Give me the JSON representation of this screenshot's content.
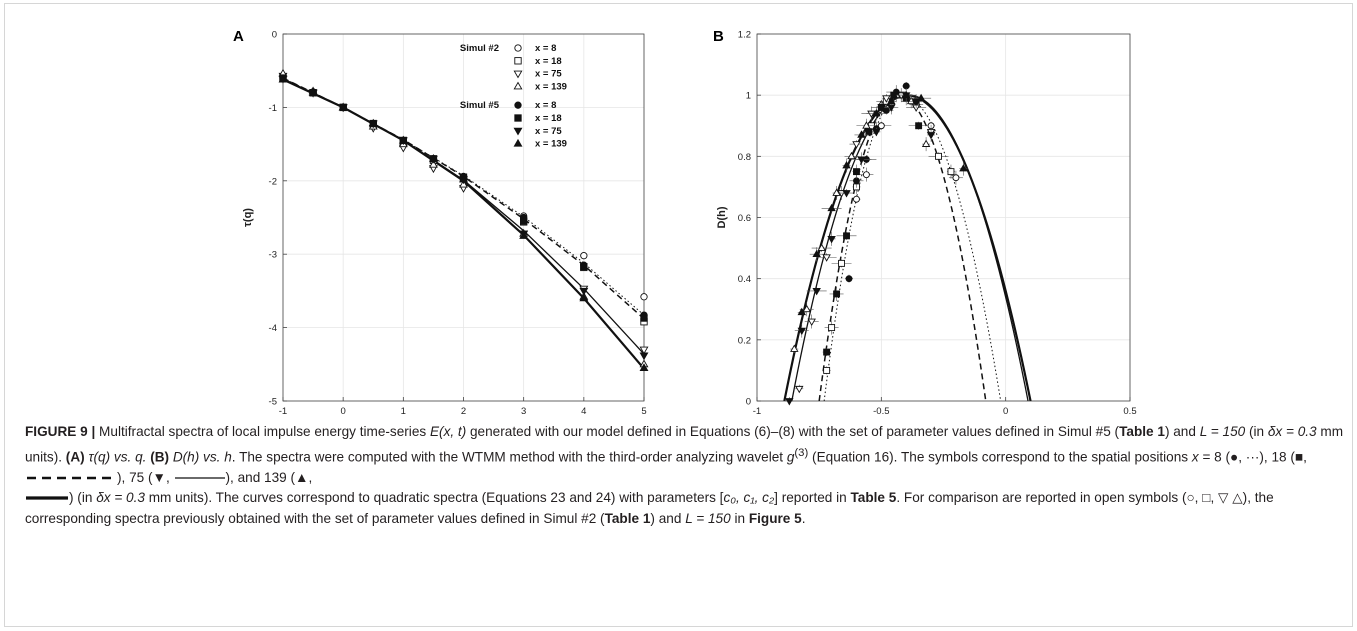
{
  "figure": {
    "panel_a_letter": "A",
    "panel_b_letter": "B"
  },
  "colors": {
    "marker": "#111111",
    "grid": "#e6e6e6",
    "axis": "#444444",
    "border": "#d6d6d6"
  },
  "chart_data": [
    {
      "type": "scatter",
      "panel": "A",
      "xlabel": "q",
      "ylabel": "τ(q)",
      "xlim": [
        -1,
        5
      ],
      "ylim": [
        -5,
        0
      ],
      "xticks": [
        -1,
        0,
        1,
        2,
        3,
        4,
        5
      ],
      "yticks": [
        0,
        -1,
        -2,
        -3,
        -4,
        -5
      ],
      "grid": true,
      "legend_position": "top-right",
      "legend_groups": [
        "Simul #2",
        "Simul #5"
      ],
      "series": [
        {
          "name": "x = 8",
          "group": "Simul #2",
          "marker": "circle-open",
          "x": [
            -1,
            -0.5,
            0,
            0.5,
            1,
            1.5,
            2,
            3,
            4,
            5
          ],
          "y": [
            -0.59,
            -0.79,
            -1.0,
            -1.22,
            -1.45,
            -1.7,
            -1.95,
            -2.48,
            -3.02,
            -3.58
          ]
        },
        {
          "name": "x = 18",
          "group": "Simul #2",
          "marker": "square-open",
          "x": [
            -1,
            -0.5,
            0,
            0.5,
            1,
            1.5,
            2,
            3,
            4,
            5
          ],
          "y": [
            -0.6,
            -0.8,
            -1.0,
            -1.23,
            -1.47,
            -1.72,
            -1.97,
            -2.56,
            -3.18,
            -3.92
          ]
        },
        {
          "name": "x = 75",
          "group": "Simul #2",
          "marker": "triangle-down-open",
          "x": [
            -1,
            -0.5,
            0,
            0.5,
            1,
            1.5,
            2,
            3,
            4,
            5
          ],
          "y": [
            -0.57,
            -0.8,
            -1.0,
            -1.28,
            -1.55,
            -1.83,
            -2.1,
            -2.72,
            -3.47,
            -4.3
          ]
        },
        {
          "name": "x = 139",
          "group": "Simul #2",
          "marker": "triangle-up-open",
          "x": [
            -1,
            -0.5,
            0,
            0.5,
            1,
            1.5,
            2,
            3,
            4,
            5
          ],
          "y": [
            -0.54,
            -0.78,
            -1.0,
            -1.26,
            -1.5,
            -1.78,
            -2.05,
            -2.72,
            -3.58,
            -4.5
          ]
        },
        {
          "name": "x = 8",
          "group": "Simul #5",
          "marker": "circle-filled",
          "x": [
            -1,
            -0.5,
            0,
            0.5,
            1,
            1.5,
            2,
            3,
            4,
            5
          ],
          "y": [
            -0.6,
            -0.79,
            -1.0,
            -1.22,
            -1.45,
            -1.7,
            -1.94,
            -2.5,
            -3.15,
            -3.83
          ]
        },
        {
          "name": "x = 18",
          "group": "Simul #5",
          "marker": "square-filled",
          "x": [
            -1,
            -0.5,
            0,
            0.5,
            1,
            1.5,
            2,
            3,
            4,
            5
          ],
          "y": [
            -0.6,
            -0.8,
            -1.0,
            -1.22,
            -1.45,
            -1.7,
            -1.95,
            -2.55,
            -3.17,
            -3.87
          ]
        },
        {
          "name": "x = 75",
          "group": "Simul #5",
          "marker": "triangle-down-filled",
          "x": [
            -1,
            -0.5,
            0,
            0.5,
            1,
            1.5,
            2,
            3,
            4,
            5
          ],
          "y": [
            -0.61,
            -0.8,
            -1.0,
            -1.22,
            -1.45,
            -1.7,
            -1.98,
            -2.72,
            -3.5,
            -4.38
          ]
        },
        {
          "name": "x = 139",
          "group": "Simul #5",
          "marker": "triangle-up-filled",
          "x": [
            -1,
            -0.5,
            0,
            0.5,
            1,
            1.5,
            2,
            3,
            4,
            5
          ],
          "y": [
            -0.62,
            -0.8,
            -1.0,
            -1.22,
            -1.45,
            -1.7,
            -1.98,
            -2.75,
            -3.6,
            -4.55
          ]
        }
      ],
      "lines": [
        {
          "style": "dotted",
          "x": [
            -1,
            0,
            1,
            2,
            3,
            4,
            5
          ],
          "y": [
            -0.6,
            -1.0,
            -1.44,
            -1.93,
            -2.49,
            -3.12,
            -3.83
          ]
        },
        {
          "style": "dashed",
          "x": [
            -1,
            0,
            1,
            2,
            3,
            4,
            5
          ],
          "y": [
            -0.6,
            -1.0,
            -1.44,
            -1.94,
            -2.52,
            -3.15,
            -3.88
          ]
        },
        {
          "style": "solid-thin",
          "x": [
            -1,
            0,
            1,
            2,
            3,
            4,
            5
          ],
          "y": [
            -0.61,
            -1.0,
            -1.45,
            -1.99,
            -2.68,
            -3.47,
            -4.36
          ]
        },
        {
          "style": "solid-thick",
          "x": [
            -1,
            0,
            1,
            2,
            3,
            4,
            5
          ],
          "y": [
            -0.62,
            -1.0,
            -1.45,
            -2.0,
            -2.74,
            -3.6,
            -4.56
          ]
        }
      ]
    },
    {
      "type": "scatter",
      "panel": "B",
      "xlabel": "h",
      "ylabel": "D(h)",
      "xlim": [
        -1,
        0.5
      ],
      "ylim": [
        0,
        1.2
      ],
      "xticks": [
        -1,
        -0.5,
        0,
        0.5
      ],
      "yticks": [
        0,
        0.2,
        0.4,
        0.6,
        0.8,
        1,
        1.2
      ],
      "grid": true,
      "series": [
        {
          "name": "x = 8",
          "group": "Simul #2",
          "marker": "circle-open",
          "x": [
            -0.6,
            -0.56,
            -0.5,
            -0.46,
            -0.42,
            -0.38,
            -0.3,
            -0.2
          ],
          "y": [
            0.66,
            0.74,
            0.9,
            0.97,
            1.0,
            0.98,
            0.9,
            0.73
          ]
        },
        {
          "name": "x = 18",
          "group": "Simul #2",
          "marker": "square-open",
          "x": [
            -0.72,
            -0.7,
            -0.66,
            -0.6,
            -0.54,
            -0.48,
            -0.42,
            -0.36,
            -0.27,
            -0.22
          ],
          "y": [
            0.1,
            0.24,
            0.45,
            0.7,
            0.9,
            0.98,
            1.0,
            0.97,
            0.8,
            0.75
          ]
        },
        {
          "name": "x = 75",
          "group": "Simul #2",
          "marker": "triangle-down-open",
          "x": [
            -0.83,
            -0.78,
            -0.72,
            -0.66,
            -0.6,
            -0.54,
            -0.48,
            -0.42,
            -0.36,
            -0.3
          ],
          "y": [
            0.04,
            0.26,
            0.47,
            0.68,
            0.84,
            0.94,
            0.99,
            1.0,
            0.96,
            0.88
          ]
        },
        {
          "name": "x = 139",
          "group": "Simul #2",
          "marker": "triangle-up-open",
          "x": [
            -0.85,
            -0.8,
            -0.74,
            -0.68,
            -0.62,
            -0.56,
            -0.5,
            -0.44,
            -0.38,
            -0.32
          ],
          "y": [
            0.17,
            0.3,
            0.5,
            0.68,
            0.8,
            0.9,
            0.97,
            1.0,
            0.98,
            0.84
          ]
        },
        {
          "name": "x = 8",
          "group": "Simul #5",
          "marker": "circle-filled",
          "x": [
            -0.63,
            -0.6,
            -0.56,
            -0.52,
            -0.48,
            -0.44,
            -0.4,
            -0.36
          ],
          "y": [
            0.4,
            0.72,
            0.79,
            0.89,
            0.95,
            1.01,
            1.03,
            0.98
          ]
        },
        {
          "name": "x = 18",
          "group": "Simul #5",
          "marker": "square-filled",
          "x": [
            -0.72,
            -0.68,
            -0.64,
            -0.6,
            -0.55,
            -0.5,
            -0.45,
            -0.4,
            -0.35
          ],
          "y": [
            0.16,
            0.35,
            0.54,
            0.75,
            0.88,
            0.96,
            1.0,
            0.99,
            0.9
          ]
        },
        {
          "name": "x = 75",
          "group": "Simul #5",
          "marker": "triangle-down-filled",
          "x": [
            -0.87,
            -0.82,
            -0.76,
            -0.7,
            -0.64,
            -0.58,
            -0.52,
            -0.46,
            -0.4,
            -0.3
          ],
          "y": [
            0.0,
            0.23,
            0.36,
            0.53,
            0.68,
            0.79,
            0.88,
            0.96,
            1.0,
            0.87
          ]
        },
        {
          "name": "x = 139",
          "group": "Simul #5",
          "marker": "triangle-up-filled",
          "x": [
            -0.82,
            -0.76,
            -0.7,
            -0.64,
            -0.58,
            -0.52,
            -0.46,
            -0.4,
            -0.34,
            -0.17
          ],
          "y": [
            0.29,
            0.48,
            0.63,
            0.77,
            0.87,
            0.94,
            0.98,
            1.0,
            0.99,
            0.76
          ]
        }
      ],
      "lines": [
        {
          "style": "dotted",
          "h_min": -0.73,
          "h_max": -0.02,
          "peak_h": -0.42,
          "peak_d": 1.0
        },
        {
          "style": "dashed",
          "h_min": -0.75,
          "h_max": -0.08,
          "peak_h": -0.43,
          "peak_d": 1.0
        },
        {
          "style": "solid-thin",
          "h_min": -0.86,
          "h_max": 0.09,
          "peak_h": -0.39,
          "peak_d": 1.0
        },
        {
          "style": "solid-thick",
          "h_min": -0.89,
          "h_max": 0.1,
          "peak_h": -0.4,
          "peak_d": 1.0
        }
      ]
    }
  ],
  "caption": {
    "label": "FIGURE 9 |",
    "text_1": " Multifractal spectra of local impulse energy time-series ",
    "math_Ext": "E(x, t)",
    "text_2": " generated with our model defined in Equations (6)–(8) with the set of parameter values defined in Simul #5 (",
    "ref_table1_a": "Table 1",
    "text_3": ") and ",
    "math_L150_a": "L = 150",
    "text_4": " (in ",
    "math_dx_a": "δx = 0.3",
    "text_5": " mm units). ",
    "panel_a": "(A)",
    "math_tau": " τ(q) vs. q. ",
    "panel_b": "(B)",
    "math_dh": " D(h) vs. h",
    "text_6": ". The spectra were computed with the WTMM method with the third-order analyzing wavelet ",
    "math_g3": "g",
    "math_g3_sup": "(3)",
    "text_7": " (Equation 16). The symbols correspond to the spatial positions ",
    "math_x": "x",
    "text_8": " = 8 (●, ···), 18 (■, ",
    "text_9": "), 75 (▼, ",
    "text_10": "), and 139 (▲, ",
    "text_11": ") (in ",
    "math_dx_b": "δx = 0.3",
    "text_12": " mm units). The curves correspond to quadratic spectra (Equations 23 and 24) with parameters [",
    "math_c": "c₀, c₁, c₂",
    "text_13": "] reported in ",
    "ref_table5": "Table 5",
    "text_14": ". For comparison are reported in open symbols (○, □, ▽ △), the corresponding spectra previously obtained with the set of parameter values defined in Simul #2 (",
    "ref_table1_b": "Table 1",
    "text_15": ") and ",
    "math_L150_b": "L = 150",
    "text_16": " in ",
    "ref_figure5": "Figure 5",
    "text_17": "."
  }
}
